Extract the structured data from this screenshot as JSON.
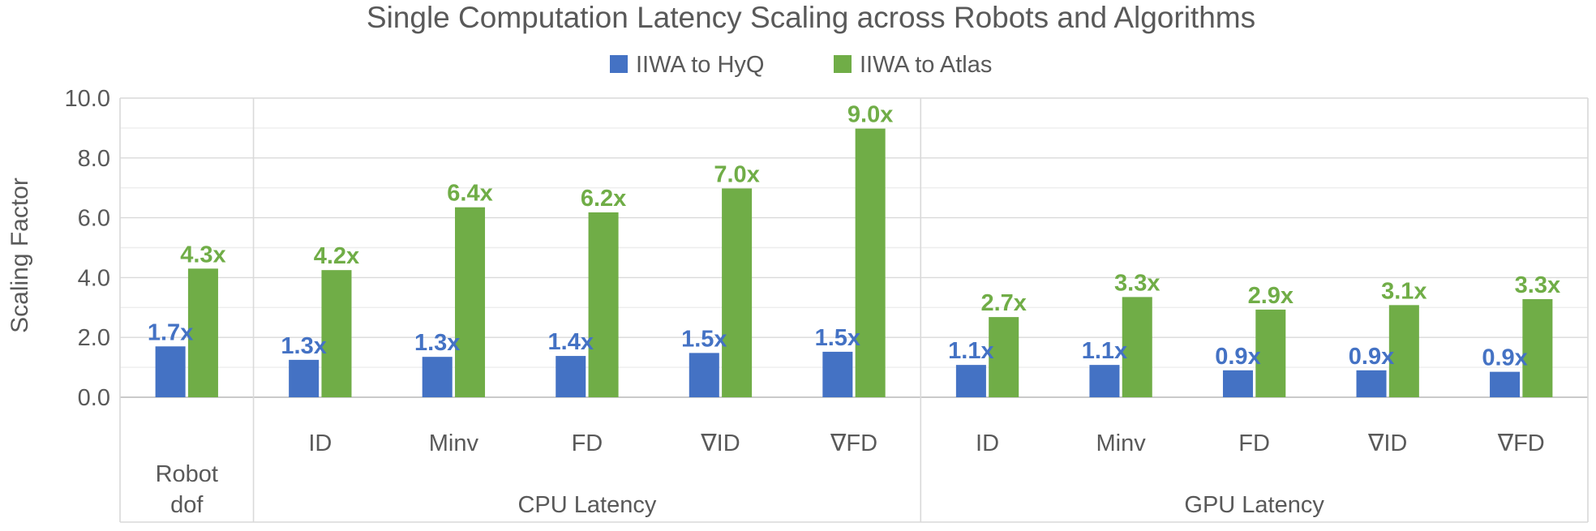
{
  "chart_data": {
    "type": "bar",
    "title": "Single Computation Latency Scaling across Robots and Algorithms",
    "ylabel": "Scaling Factor",
    "ylim": [
      0,
      10
    ],
    "yticks": [
      0,
      2,
      4,
      6,
      8,
      10
    ],
    "ytick_labels": [
      "0.0",
      "2.0",
      "4.0",
      "6.0",
      "8.0",
      "10.0"
    ],
    "grid": true,
    "legend_position": "top-center",
    "groups": [
      {
        "label": "Robot dof",
        "label_lines": [
          "Robot",
          "dof"
        ],
        "categories": [
          ""
        ]
      },
      {
        "label": "CPU Latency",
        "categories": [
          "ID",
          "Minv",
          "FD",
          "∇ID",
          "∇FD"
        ]
      },
      {
        "label": "GPU Latency",
        "categories": [
          "ID",
          "Minv",
          "FD",
          "∇ID",
          "∇FD"
        ]
      }
    ],
    "series": [
      {
        "name": "IIWA to HyQ",
        "color": "#4472C4",
        "label_color": "#4472C4",
        "values": [
          1.7,
          1.25,
          1.35,
          1.38,
          1.48,
          1.52,
          1.08,
          1.08,
          0.9,
          0.9,
          0.85
        ],
        "labels": [
          "1.7x",
          "1.3x",
          "1.3x",
          "1.4x",
          "1.5x",
          "1.5x",
          "1.1x",
          "1.1x",
          "0.9x",
          "0.9x",
          "0.9x"
        ]
      },
      {
        "name": "IIWA to Atlas",
        "color": "#70AD47",
        "label_color": "#70AD47",
        "values": [
          4.3,
          4.25,
          6.35,
          6.18,
          6.98,
          8.98,
          2.68,
          3.35,
          2.93,
          3.08,
          3.28
        ],
        "labels": [
          "4.3x",
          "4.2x",
          "6.4x",
          "6.2x",
          "7.0x",
          "9.0x",
          "2.7x",
          "3.3x",
          "2.9x",
          "3.1x",
          "3.3x"
        ]
      }
    ]
  }
}
